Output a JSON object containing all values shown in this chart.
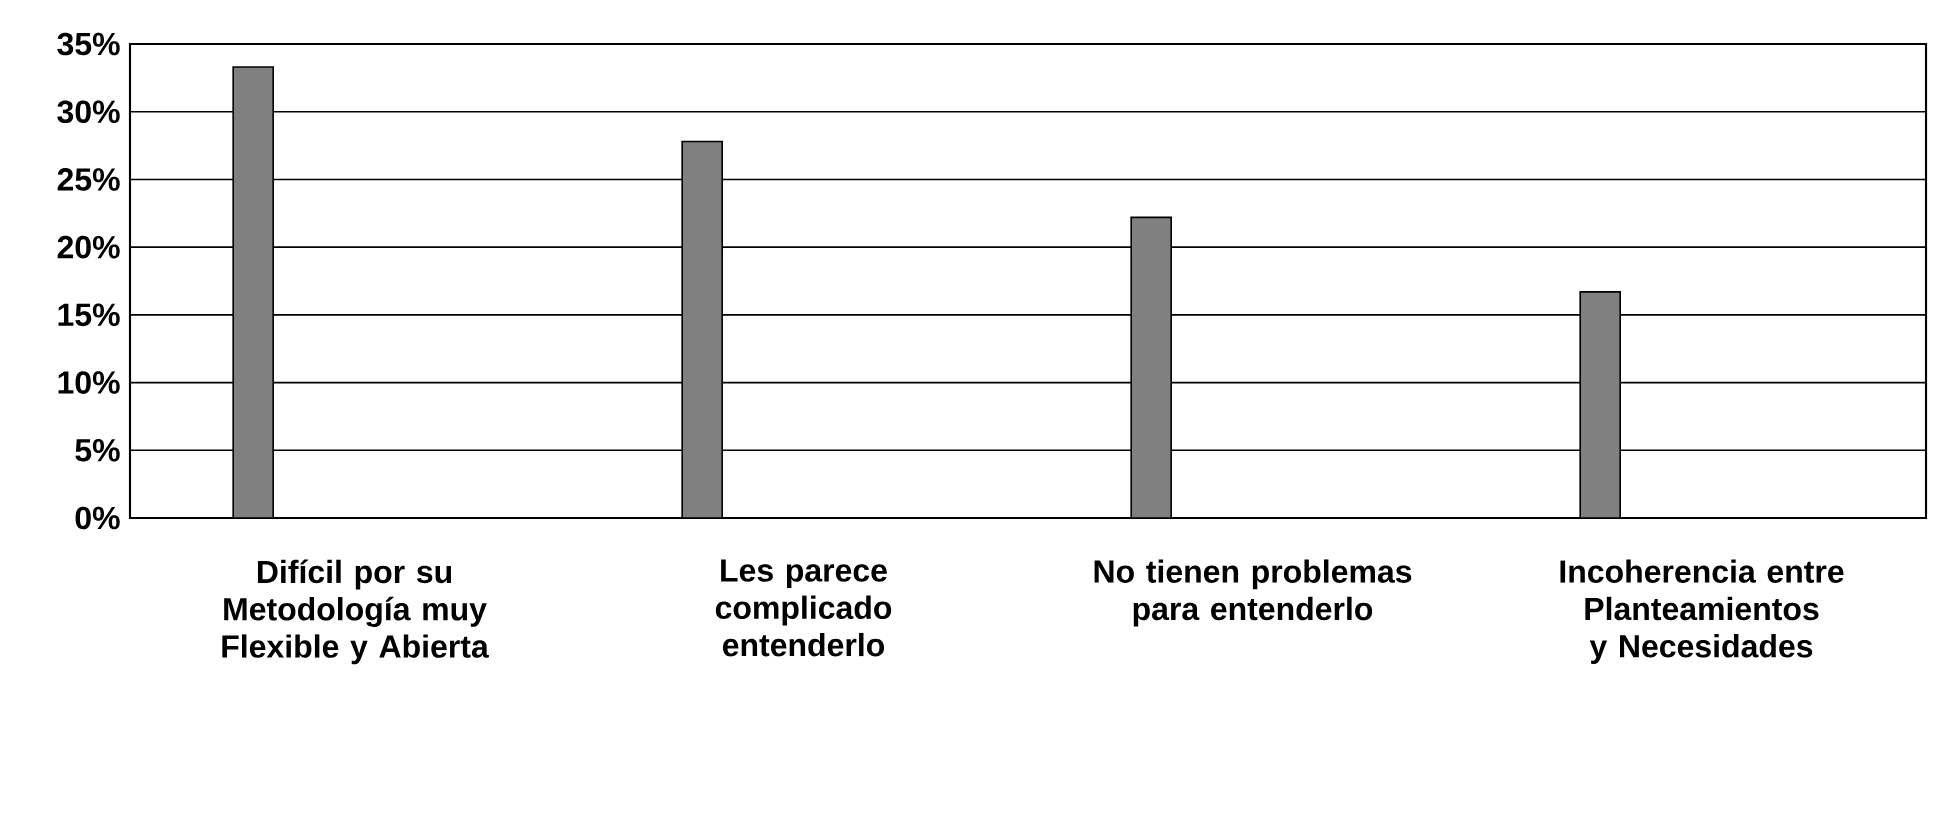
{
  "chart_data": {
    "type": "bar",
    "categories": [
      "Difícil por su Metodología muy Flexible y Abierta",
      "Les parece complicado entenderlo",
      "No tienen problemas para entenderlo",
      "Incoherencia entre Planteamientos y Necesidades"
    ],
    "values": [
      33.3,
      27.8,
      22.2,
      16.7
    ],
    "color": "#808080",
    "ylim": [
      0,
      35
    ],
    "yticks": [
      {
        "value": 0,
        "label": "0%"
      },
      {
        "value": 5,
        "label": "5%"
      },
      {
        "value": 10,
        "label": "10%"
      },
      {
        "value": 15,
        "label": "15%"
      },
      {
        "value": 20,
        "label": "20%"
      },
      {
        "value": 25,
        "label": "25%"
      },
      {
        "value": 30,
        "label": "30%"
      },
      {
        "value": 35,
        "label": "35%"
      }
    ],
    "grid": "y"
  }
}
